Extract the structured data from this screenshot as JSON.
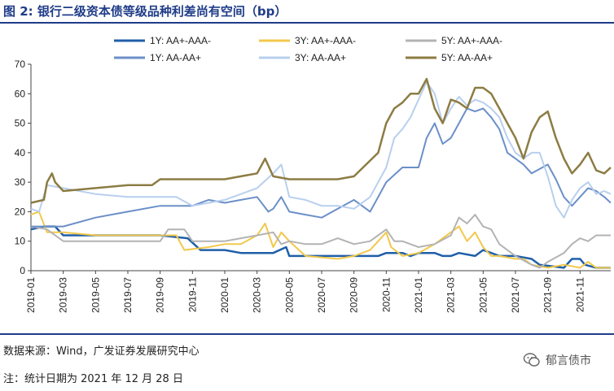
{
  "header": {
    "title": "图 2:  银行二级资本债等级品种利差尚有空间（bp）"
  },
  "footer": {
    "source": "数据来源：Wind，广发证券发展研究中心",
    "note": "注：统计日期为 2021 年 12 月 28 日",
    "watermark": "郁言债市",
    "watermark_icon": "wechat-icon"
  },
  "chart_data": {
    "type": "line",
    "title": "银行二级资本债等级品种利差尚有空间（bp）",
    "xlabel": "",
    "ylabel": "",
    "ylim": [
      0,
      70
    ],
    "yticks": [
      "0",
      "10",
      "20",
      "30",
      "40",
      "50",
      "60",
      "70"
    ],
    "x_ticks": [
      "2019-01",
      "2019-03",
      "2019-05",
      "2019-07",
      "2019-09",
      "2019-11",
      "2020-01",
      "2020-03",
      "2020-05",
      "2020-07",
      "2020-09",
      "2020-11",
      "2021-01",
      "2021-03",
      "2021-05",
      "2021-07",
      "2021-09",
      "2021-11"
    ],
    "x_range_months": [
      0,
      35.9
    ],
    "legend_position": "top",
    "series": [
      {
        "name": "1Y:  AA+-AAA-",
        "color": "#1f5fa8",
        "width": 2.5,
        "points": [
          [
            0,
            14
          ],
          [
            0.8,
            15
          ],
          [
            1.5,
            15
          ],
          [
            2,
            12
          ],
          [
            4,
            12
          ],
          [
            6,
            12
          ],
          [
            8,
            12
          ],
          [
            9.7,
            11
          ],
          [
            10.5,
            7
          ],
          [
            12,
            7
          ],
          [
            13,
            6
          ],
          [
            15,
            6
          ],
          [
            15.8,
            8
          ],
          [
            16,
            5
          ],
          [
            18,
            5
          ],
          [
            20,
            5
          ],
          [
            21.5,
            5
          ],
          [
            22,
            6
          ],
          [
            23,
            6
          ],
          [
            23.5,
            5
          ],
          [
            24,
            6
          ],
          [
            25,
            6
          ],
          [
            25.5,
            5
          ],
          [
            26,
            5
          ],
          [
            26.5,
            6
          ],
          [
            27.5,
            5
          ],
          [
            28,
            7
          ],
          [
            28.5,
            6
          ],
          [
            29,
            5
          ],
          [
            30,
            5
          ],
          [
            31,
            4
          ],
          [
            31.5,
            2
          ],
          [
            33,
            1
          ],
          [
            33.5,
            4
          ],
          [
            34,
            4
          ],
          [
            34.3,
            2
          ],
          [
            35,
            1
          ],
          [
            35.9,
            1
          ]
        ]
      },
      {
        "name": "3Y:  AA+-AAA-",
        "color": "#f2c84b",
        "width": 2,
        "points": [
          [
            0,
            19
          ],
          [
            0.5,
            20
          ],
          [
            1,
            13
          ],
          [
            2,
            13
          ],
          [
            4,
            12
          ],
          [
            6,
            12
          ],
          [
            8,
            12
          ],
          [
            9,
            12
          ],
          [
            9.5,
            7
          ],
          [
            11,
            8
          ],
          [
            12,
            9
          ],
          [
            13,
            9
          ],
          [
            14,
            12
          ],
          [
            14.5,
            16
          ],
          [
            15,
            8
          ],
          [
            15.5,
            13
          ],
          [
            16,
            10
          ],
          [
            17,
            5
          ],
          [
            19,
            4
          ],
          [
            20,
            5
          ],
          [
            21,
            7
          ],
          [
            22,
            13
          ],
          [
            22.3,
            8
          ],
          [
            23,
            5
          ],
          [
            24,
            6
          ],
          [
            25,
            9
          ],
          [
            26.5,
            15
          ],
          [
            27,
            10
          ],
          [
            27.5,
            13
          ],
          [
            28,
            8
          ],
          [
            28.5,
            5
          ],
          [
            29,
            5
          ],
          [
            30,
            4
          ],
          [
            30.5,
            4
          ],
          [
            31,
            2
          ],
          [
            32,
            1
          ],
          [
            33,
            2
          ],
          [
            34,
            1
          ],
          [
            34.5,
            3
          ],
          [
            35,
            1
          ],
          [
            35.9,
            1
          ]
        ]
      },
      {
        "name": "5Y:  AA+-AAA-",
        "color": "#b3b3b3",
        "width": 2,
        "points": [
          [
            0,
            15
          ],
          [
            1,
            14
          ],
          [
            2,
            10
          ],
          [
            4,
            10
          ],
          [
            6,
            10
          ],
          [
            8,
            10
          ],
          [
            8.5,
            14
          ],
          [
            9.5,
            14
          ],
          [
            10,
            10
          ],
          [
            12,
            10
          ],
          [
            13,
            11
          ],
          [
            14,
            12
          ],
          [
            15,
            13
          ],
          [
            15.5,
            9
          ],
          [
            16,
            10
          ],
          [
            17,
            9
          ],
          [
            18,
            9
          ],
          [
            19,
            11
          ],
          [
            20,
            9
          ],
          [
            21,
            10
          ],
          [
            22,
            14
          ],
          [
            22.5,
            10
          ],
          [
            23,
            10
          ],
          [
            24,
            8
          ],
          [
            25,
            9
          ],
          [
            26,
            12
          ],
          [
            26.5,
            18
          ],
          [
            27,
            16
          ],
          [
            27.5,
            19
          ],
          [
            28,
            15
          ],
          [
            28.5,
            14
          ],
          [
            29,
            9
          ],
          [
            30,
            5
          ],
          [
            31,
            2
          ],
          [
            31.5,
            1
          ],
          [
            32,
            3
          ],
          [
            33,
            6
          ],
          [
            33.5,
            9
          ],
          [
            34,
            11
          ],
          [
            34.5,
            10
          ],
          [
            35,
            12
          ],
          [
            35.9,
            12
          ]
        ]
      },
      {
        "name": "1Y:  AA-AA+",
        "color": "#6b8fc8",
        "width": 2,
        "points": [
          [
            0,
            15
          ],
          [
            1,
            15
          ],
          [
            1.5,
            15
          ],
          [
            2,
            15
          ],
          [
            4,
            18
          ],
          [
            6,
            20
          ],
          [
            8,
            22
          ],
          [
            10,
            22
          ],
          [
            11,
            24
          ],
          [
            12,
            23
          ],
          [
            13,
            24
          ],
          [
            14,
            25
          ],
          [
            14.7,
            20
          ],
          [
            15,
            21
          ],
          [
            15.5,
            25
          ],
          [
            16,
            20
          ],
          [
            17,
            19
          ],
          [
            18,
            18
          ],
          [
            19,
            21
          ],
          [
            20,
            24
          ],
          [
            21,
            20
          ],
          [
            21.5,
            25
          ],
          [
            22,
            30
          ],
          [
            23,
            35
          ],
          [
            24,
            35
          ],
          [
            24.5,
            45
          ],
          [
            25,
            50
          ],
          [
            25.5,
            43
          ],
          [
            26,
            45
          ],
          [
            26.5,
            50
          ],
          [
            27,
            55
          ],
          [
            27.5,
            54
          ],
          [
            28,
            55
          ],
          [
            28.5,
            52
          ],
          [
            29,
            48
          ],
          [
            29.5,
            40
          ],
          [
            30,
            38
          ],
          [
            30.5,
            36
          ],
          [
            31,
            33
          ],
          [
            32,
            36
          ],
          [
            32.5,
            31
          ],
          [
            33,
            25
          ],
          [
            33.5,
            22
          ],
          [
            34,
            25
          ],
          [
            34.5,
            28
          ],
          [
            35,
            27
          ],
          [
            35.5,
            25
          ],
          [
            35.9,
            23
          ]
        ]
      },
      {
        "name": "3Y:  AA-AA+",
        "color": "#b8cfee",
        "width": 2,
        "points": [
          [
            0,
            21
          ],
          [
            0.5,
            20
          ],
          [
            1,
            29
          ],
          [
            2,
            28
          ],
          [
            4,
            26
          ],
          [
            6,
            25
          ],
          [
            8,
            25
          ],
          [
            9,
            25
          ],
          [
            10,
            22
          ],
          [
            12,
            24
          ],
          [
            13,
            26
          ],
          [
            14,
            28
          ],
          [
            15,
            33
          ],
          [
            15.5,
            36
          ],
          [
            16,
            25
          ],
          [
            17,
            24
          ],
          [
            18,
            22
          ],
          [
            19,
            22
          ],
          [
            20,
            21
          ],
          [
            21,
            25
          ],
          [
            22,
            35
          ],
          [
            22.5,
            45
          ],
          [
            23,
            48
          ],
          [
            23.5,
            52
          ],
          [
            24,
            58
          ],
          [
            24.5,
            64
          ],
          [
            25,
            60
          ],
          [
            25.5,
            50
          ],
          [
            26,
            55
          ],
          [
            26.5,
            59
          ],
          [
            27,
            56
          ],
          [
            27.5,
            58
          ],
          [
            28,
            57
          ],
          [
            28.5,
            55
          ],
          [
            29,
            52
          ],
          [
            29.5,
            45
          ],
          [
            30,
            40
          ],
          [
            30.5,
            38
          ],
          [
            31,
            40
          ],
          [
            31.5,
            40
          ],
          [
            32,
            32
          ],
          [
            32.5,
            22
          ],
          [
            33,
            18
          ],
          [
            33.5,
            24
          ],
          [
            34,
            28
          ],
          [
            34.5,
            30
          ],
          [
            35,
            26
          ],
          [
            35.5,
            27
          ],
          [
            35.9,
            26
          ]
        ]
      },
      {
        "name": "5Y:  AA-AA+",
        "color": "#8c7c43",
        "width": 2.5,
        "points": [
          [
            0,
            23
          ],
          [
            0.8,
            24
          ],
          [
            1,
            30
          ],
          [
            1.3,
            33
          ],
          [
            1.5,
            30
          ],
          [
            2,
            27
          ],
          [
            4,
            28
          ],
          [
            6,
            29
          ],
          [
            7.5,
            29
          ],
          [
            8,
            31
          ],
          [
            10,
            31
          ],
          [
            12,
            31
          ],
          [
            13,
            32
          ],
          [
            14,
            33
          ],
          [
            14.5,
            38
          ],
          [
            15,
            32
          ],
          [
            16,
            31
          ],
          [
            17,
            31
          ],
          [
            18,
            31
          ],
          [
            19,
            31
          ],
          [
            20,
            32
          ],
          [
            21.5,
            40
          ],
          [
            22,
            50
          ],
          [
            22.5,
            55
          ],
          [
            23,
            57
          ],
          [
            23.5,
            60
          ],
          [
            24,
            60
          ],
          [
            24.5,
            65
          ],
          [
            25,
            55
          ],
          [
            25.5,
            50
          ],
          [
            26,
            58
          ],
          [
            26.5,
            57
          ],
          [
            27,
            55
          ],
          [
            27.5,
            62
          ],
          [
            28,
            62
          ],
          [
            28.5,
            60
          ],
          [
            29,
            55
          ],
          [
            29.5,
            50
          ],
          [
            30,
            45
          ],
          [
            30.5,
            38
          ],
          [
            31,
            47
          ],
          [
            31.5,
            52
          ],
          [
            32,
            54
          ],
          [
            32.5,
            45
          ],
          [
            33,
            38
          ],
          [
            33.5,
            33
          ],
          [
            34,
            36
          ],
          [
            34.5,
            40
          ],
          [
            35,
            34
          ],
          [
            35.5,
            33
          ],
          [
            35.9,
            35
          ]
        ]
      }
    ]
  }
}
